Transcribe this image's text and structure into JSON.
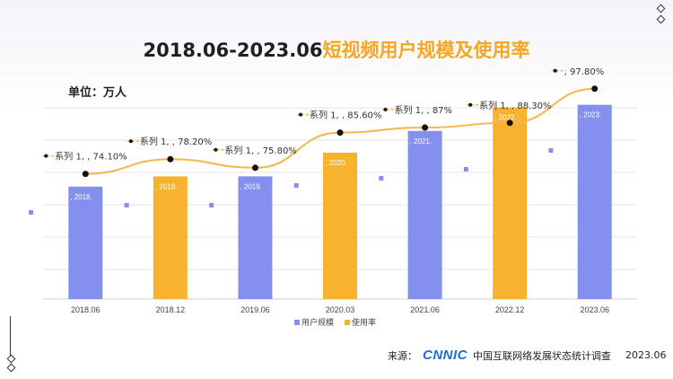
{
  "title": {
    "main": "2018.06-2023.06",
    "highlight": "短视频用户规模及使用率"
  },
  "unit_label": "单位：万人",
  "source": {
    "prefix": "来源：",
    "org": "CNNIC",
    "survey": "中国互联网络发展状态统计调查",
    "date": "2023.06"
  },
  "colors": {
    "blue": "#8490ee",
    "orange": "#f7b32e",
    "line": "#f5b74a",
    "dot": "#111111"
  },
  "icons": [
    "diamond-icon",
    "diamond-icon",
    "diamond-icon",
    "diamond-icon"
  ],
  "chart_data": {
    "type": "bar",
    "categories": [
      "2018.06",
      "2018.12",
      "2019.06",
      "2020.03",
      "2021.06",
      "2022.12",
      "2023.06"
    ],
    "bar_colors": [
      "blue",
      "orange",
      "blue",
      "orange",
      "blue",
      "orange",
      "blue"
    ],
    "bar_labels": [
      ", 2018.",
      ", 2018.",
      ", 2019.",
      ", 2020.",
      ", 2021.",
      ", 2022.",
      ", 2023."
    ],
    "series": [
      {
        "name": "用户规模",
        "type": "bar",
        "values": [
          59400,
          64800,
          64800,
          77300,
          88800,
          101200,
          102600
        ]
      },
      {
        "name": "使用率",
        "type": "line",
        "values": [
          74.1,
          78.2,
          75.8,
          85.6,
          87.0,
          88.3,
          97.8
        ],
        "labels": [
          "系列 1, , 74.10%",
          "系列 1, , 78.20%",
          "系列 1, , 75.80%",
          "系列 1, , 85.60%",
          "系列 1, , 87%",
          "系列 1, , 88.30%",
          ", 97.80%"
        ]
      }
    ],
    "legend": [
      "用户规模",
      "使用率"
    ],
    "legend_position": "bottom"
  }
}
